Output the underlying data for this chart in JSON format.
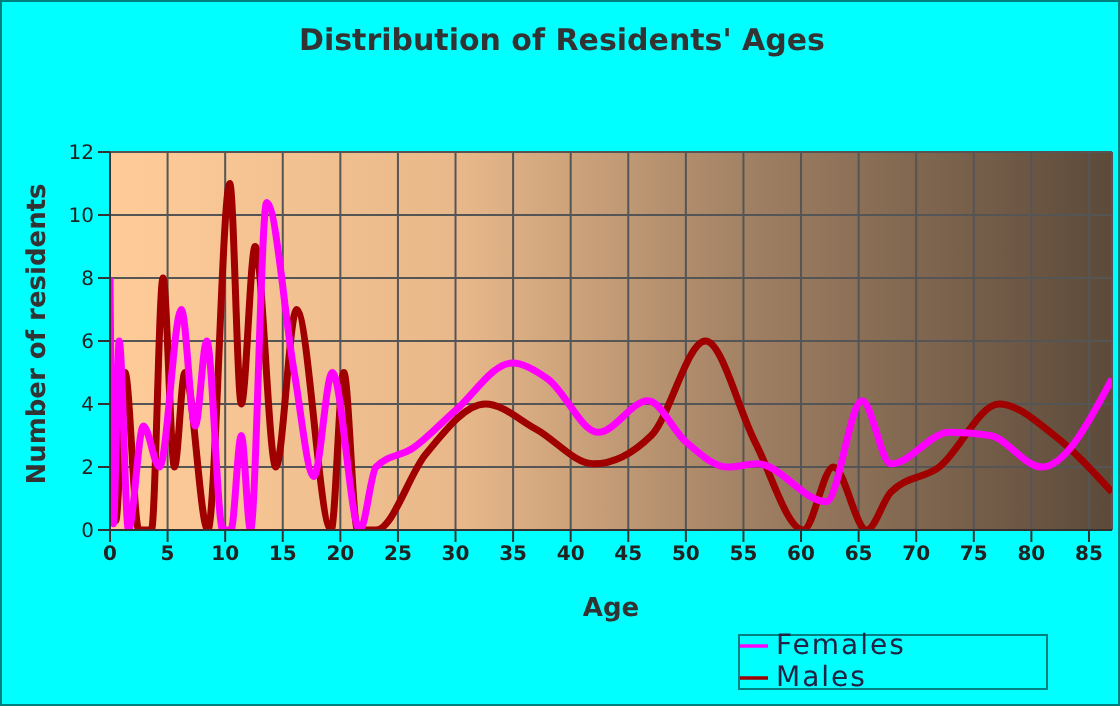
{
  "chart_data": {
    "type": "line",
    "title": "Distribution of Residents' Ages",
    "xlabel": "Age",
    "ylabel": "Number of residents",
    "xlim": [
      0,
      87
    ],
    "xticks": [
      0,
      5,
      10,
      15,
      20,
      25,
      30,
      35,
      40,
      45,
      50,
      55,
      60,
      65,
      70,
      75,
      80,
      85
    ],
    "ylim": [
      0,
      12
    ],
    "yticks": [
      0,
      2,
      4,
      6,
      8,
      10,
      12
    ],
    "grid": true,
    "legend": "bottom",
    "marker": "none",
    "line_style": "solid",
    "series": [
      {
        "name": "Males",
        "color": "#a00000",
        "x": [
          0,
          0.5,
          1.3,
          2.5,
          3.6,
          4.6,
          5.6,
          6.5,
          8.5,
          10.4,
          11.4,
          12.6,
          14.4,
          16.2,
          19.2,
          20.3,
          21.5,
          23.1,
          27.4,
          32.6,
          37,
          42,
          47,
          51.7,
          56,
          60.2,
          62.8,
          65.7,
          67.8,
          72,
          77.2,
          82,
          87
        ],
        "values": [
          5,
          0.3,
          5,
          0,
          0,
          8,
          2,
          5,
          0,
          11,
          4,
          9,
          2,
          7,
          0,
          5,
          0,
          0,
          2.4,
          4,
          3.2,
          2.1,
          3,
          6,
          2.8,
          0,
          2,
          0,
          1.2,
          2,
          4,
          3,
          1.2
        ]
      },
      {
        "name": "Females",
        "color": "#ff00ff",
        "x": [
          0,
          0.3,
          0.8,
          1.6,
          2.9,
          4.3,
          6.2,
          7.4,
          8.4,
          9.8,
          10.5,
          11.4,
          12.2,
          13.6,
          16,
          17.7,
          19.3,
          21.7,
          23.1,
          26.3,
          30,
          34.9,
          38,
          42.4,
          46.7,
          50,
          53.6,
          56.2,
          62.2,
          65.3,
          67.8,
          72.9,
          76.4,
          80.9,
          87
        ],
        "values": [
          8,
          0.2,
          6,
          0,
          3.3,
          2,
          7,
          3.3,
          6,
          0,
          0,
          3,
          0,
          10.4,
          5,
          1.7,
          5,
          0,
          2,
          2.6,
          3.8,
          5.3,
          4.8,
          3.1,
          4.1,
          2.8,
          2,
          2.1,
          0.9,
          4.1,
          2.1,
          3.1,
          3,
          2,
          4.8
        ]
      }
    ]
  }
}
